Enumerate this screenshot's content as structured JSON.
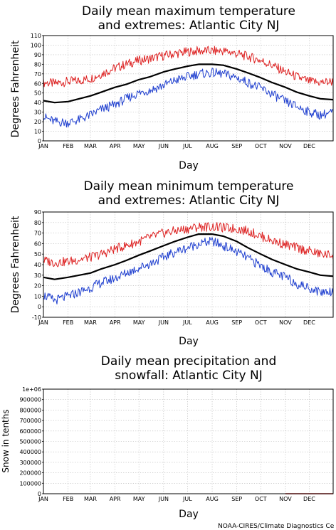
{
  "credit": "NOAA-CIRES/Climate Diagnostics Ce",
  "colors": {
    "max_extreme": "#dd2222",
    "mean": "#000000",
    "min_extreme": "#1f3fcf",
    "precip": "#dd2222",
    "grid": "#b0b0b0"
  },
  "chart_data": [
    {
      "type": "line",
      "title": [
        "Daily mean maximum temperature",
        "and extremes: Atlantic City NJ"
      ],
      "xlabel": "Day",
      "ylabel": "Degrees Fahrenheit",
      "xlim": [
        1,
        365
      ],
      "ylim": [
        0,
        110
      ],
      "yticks": [
        0,
        10,
        20,
        30,
        40,
        50,
        60,
        70,
        80,
        90,
        100,
        110
      ],
      "xticks": [
        {
          "label": "JAN",
          "day": 1
        },
        {
          "label": "FEB",
          "day": 32
        },
        {
          "label": "MAR",
          "day": 60
        },
        {
          "label": "APR",
          "day": 91
        },
        {
          "label": "MAY",
          "day": 121
        },
        {
          "label": "JUN",
          "day": 152
        },
        {
          "label": "JUL",
          "day": 182
        },
        {
          "label": "AUG",
          "day": 213
        },
        {
          "label": "SEP",
          "day": 244
        },
        {
          "label": "OCT",
          "day": 274
        },
        {
          "label": "NOV",
          "day": 305
        },
        {
          "label": "DEC",
          "day": 335
        }
      ],
      "grid": true,
      "series": [
        {
          "role": "max_extreme",
          "x": [
            1,
            15,
            32,
            46,
            60,
            74,
            91,
            105,
            121,
            135,
            152,
            166,
            182,
            196,
            213,
            227,
            244,
            258,
            274,
            288,
            305,
            319,
            335,
            349,
            365
          ],
          "y": [
            61,
            60,
            62,
            63,
            65,
            70,
            76,
            80,
            84,
            86,
            89,
            91,
            93,
            94,
            94,
            94,
            91,
            88,
            84,
            79,
            72,
            67,
            62,
            61,
            62
          ]
        },
        {
          "role": "mean",
          "x": [
            1,
            15,
            32,
            46,
            60,
            74,
            91,
            105,
            121,
            135,
            152,
            166,
            182,
            196,
            213,
            227,
            244,
            258,
            274,
            288,
            305,
            319,
            335,
            349,
            365
          ],
          "y": [
            42,
            40,
            41,
            44,
            47,
            51,
            56,
            59,
            64,
            67,
            72,
            75,
            78,
            80,
            80,
            79,
            75,
            71,
            66,
            61,
            56,
            51,
            47,
            44,
            43
          ]
        },
        {
          "role": "min_extreme",
          "x": [
            1,
            15,
            32,
            46,
            60,
            74,
            91,
            105,
            121,
            135,
            152,
            166,
            182,
            196,
            213,
            227,
            244,
            258,
            274,
            288,
            305,
            319,
            335,
            349,
            365
          ],
          "y": [
            25,
            20,
            19,
            22,
            27,
            33,
            38,
            44,
            50,
            53,
            58,
            63,
            67,
            70,
            71,
            70,
            66,
            61,
            55,
            49,
            41,
            36,
            30,
            27,
            30
          ]
        }
      ]
    },
    {
      "type": "line",
      "title": [
        "Daily mean minimum temperature",
        "and extremes: Atlantic City NJ"
      ],
      "xlabel": "Day",
      "ylabel": "Degrees Fahrenheit",
      "xlim": [
        1,
        365
      ],
      "ylim": [
        -10,
        90
      ],
      "yticks": [
        -10,
        0,
        10,
        20,
        30,
        40,
        50,
        60,
        70,
        80,
        90
      ],
      "xticks": [
        {
          "label": "JAN",
          "day": 1
        },
        {
          "label": "FEB",
          "day": 32
        },
        {
          "label": "MAR",
          "day": 60
        },
        {
          "label": "APR",
          "day": 91
        },
        {
          "label": "MAY",
          "day": 121
        },
        {
          "label": "JUN",
          "day": 152
        },
        {
          "label": "JUL",
          "day": 182
        },
        {
          "label": "AUG",
          "day": 213
        },
        {
          "label": "SEP",
          "day": 244
        },
        {
          "label": "OCT",
          "day": 274
        },
        {
          "label": "NOV",
          "day": 305
        },
        {
          "label": "DEC",
          "day": 335
        }
      ],
      "grid": true,
      "series": [
        {
          "role": "max_extreme",
          "x": [
            1,
            15,
            32,
            46,
            60,
            74,
            91,
            105,
            121,
            135,
            152,
            166,
            182,
            196,
            213,
            227,
            244,
            258,
            274,
            288,
            305,
            319,
            335,
            349,
            365
          ],
          "y": [
            44,
            42,
            43,
            45,
            47,
            50,
            55,
            58,
            62,
            66,
            70,
            72,
            74,
            76,
            76,
            75,
            74,
            72,
            67,
            63,
            59,
            56,
            53,
            50,
            49
          ]
        },
        {
          "role": "mean",
          "x": [
            1,
            15,
            32,
            46,
            60,
            74,
            91,
            105,
            121,
            135,
            152,
            166,
            182,
            196,
            213,
            227,
            244,
            258,
            274,
            288,
            305,
            319,
            335,
            349,
            365
          ],
          "y": [
            28,
            26,
            28,
            30,
            32,
            36,
            40,
            44,
            49,
            53,
            58,
            62,
            66,
            69,
            69,
            67,
            62,
            56,
            50,
            45,
            40,
            36,
            33,
            30,
            29
          ]
        },
        {
          "role": "min_extreme",
          "x": [
            1,
            15,
            32,
            46,
            60,
            74,
            91,
            105,
            121,
            135,
            152,
            166,
            182,
            196,
            213,
            227,
            244,
            258,
            274,
            288,
            305,
            319,
            335,
            349,
            365
          ],
          "y": [
            11,
            6,
            10,
            14,
            18,
            23,
            27,
            32,
            37,
            41,
            47,
            52,
            56,
            60,
            62,
            58,
            52,
            46,
            39,
            33,
            28,
            22,
            18,
            14,
            15
          ]
        }
      ]
    },
    {
      "type": "line",
      "title": [
        "Daily mean precipitation and",
        "snowfall: Atlantic City NJ"
      ],
      "xlabel": "Day",
      "ylabel": "Snow in tenths",
      "xlim": [
        1,
        365
      ],
      "ylim": [
        0,
        1000000
      ],
      "yticks": [
        0,
        100000,
        200000,
        300000,
        400000,
        500000,
        600000,
        700000,
        800000,
        900000,
        1000000
      ],
      "ytick_labels": [
        "0",
        "100000",
        "200000",
        "300000",
        "400000",
        "500000",
        "600000",
        "700000",
        "800000",
        "900000",
        "1e+06"
      ],
      "xticks": [
        {
          "label": "JAN",
          "day": 1
        },
        {
          "label": "FEB",
          "day": 32
        },
        {
          "label": "MAR",
          "day": 60
        },
        {
          "label": "APR",
          "day": 91
        },
        {
          "label": "MAY",
          "day": 121
        },
        {
          "label": "JUN",
          "day": 152
        },
        {
          "label": "JUL",
          "day": 182
        },
        {
          "label": "AUG",
          "day": 213
        },
        {
          "label": "SEP",
          "day": 244
        },
        {
          "label": "OCT",
          "day": 274
        },
        {
          "label": "NOV",
          "day": 305
        },
        {
          "label": "DEC",
          "day": 335
        }
      ],
      "grid": true,
      "series": [
        {
          "role": "precip",
          "x": [
            305,
            365
          ],
          "y": [
            0,
            0
          ]
        }
      ]
    }
  ]
}
